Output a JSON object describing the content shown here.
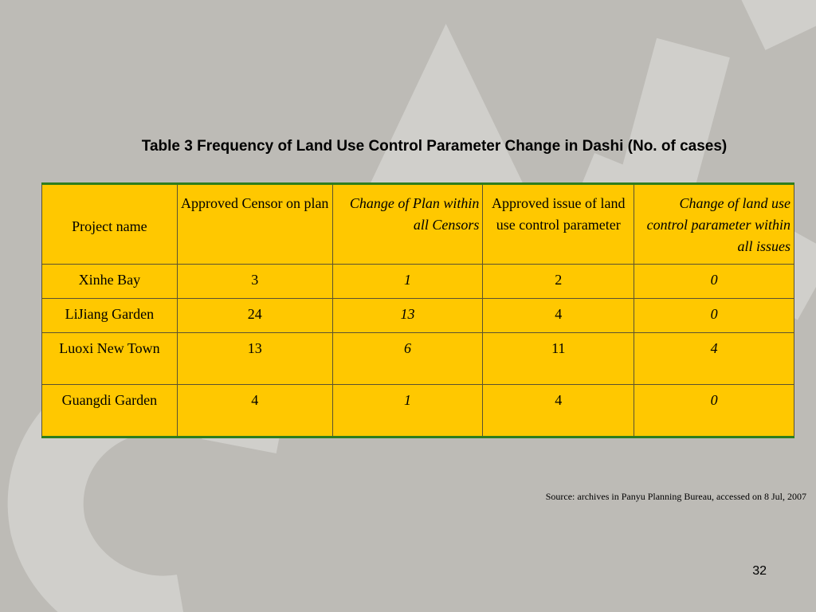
{
  "slide": {
    "title": "Table 3 Frequency of Land Use Control Parameter Change in Dashi (No. of cases)",
    "source": "Source: archives in Panyu Planning Bureau, accessed on 8 Jul, 2007",
    "page_number": "32"
  },
  "table": {
    "headers": [
      "Project name",
      "Approved Censor on plan",
      "Change of Plan within all Censors",
      "Approved issue of land use control parameter",
      "Change of land use control parameter within all issues"
    ],
    "rows": [
      [
        "Xinhe Bay",
        "3",
        "1",
        "2",
        "0"
      ],
      [
        "LiJiang Garden",
        "24",
        "13",
        "4",
        "0"
      ],
      [
        "Luoxi New Town",
        "13",
        "6",
        "11",
        "4"
      ],
      [
        "Guangdi Garden",
        "4",
        "1",
        "4",
        "0"
      ]
    ]
  },
  "colors": {
    "background": "#bdbbb6",
    "table_fill": "#ffc800",
    "table_rule": "#2f7d1d"
  }
}
